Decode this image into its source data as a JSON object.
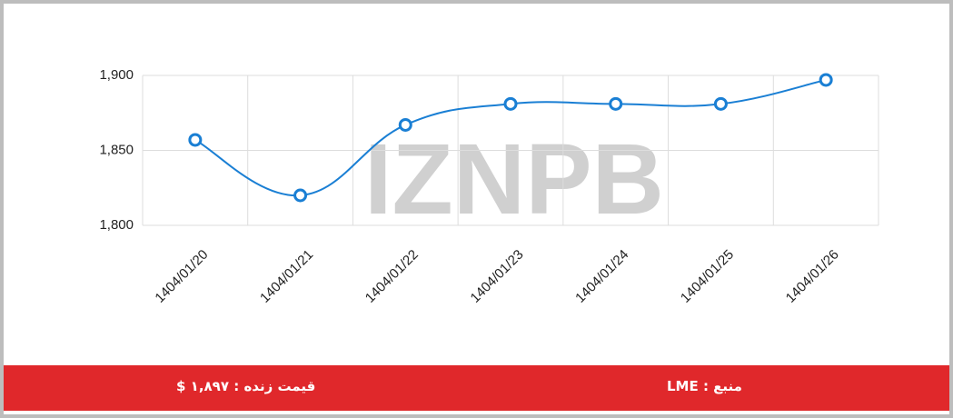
{
  "chart_data": {
    "type": "line",
    "watermark": "IZNPB",
    "categories": [
      "1404/01/20",
      "1404/01/21",
      "1404/01/22",
      "1404/01/23",
      "1404/01/24",
      "1404/01/25",
      "1404/01/26"
    ],
    "series": [
      {
        "name": "LME",
        "color": "#1a7fd4",
        "values": [
          1857,
          1820,
          1867,
          1881,
          1881,
          1881,
          1897
        ]
      }
    ],
    "ylim": [
      1800,
      1900
    ],
    "yticks": [
      {
        "value": 1800,
        "label": "1,800"
      },
      {
        "value": 1850,
        "label": "1,850"
      },
      {
        "value": 1900,
        "label": "1,900"
      }
    ],
    "grid": true
  },
  "footer": {
    "live_price": "قیمت زنده : ۱,۸۹۷ $",
    "source": "منبع : LME"
  }
}
